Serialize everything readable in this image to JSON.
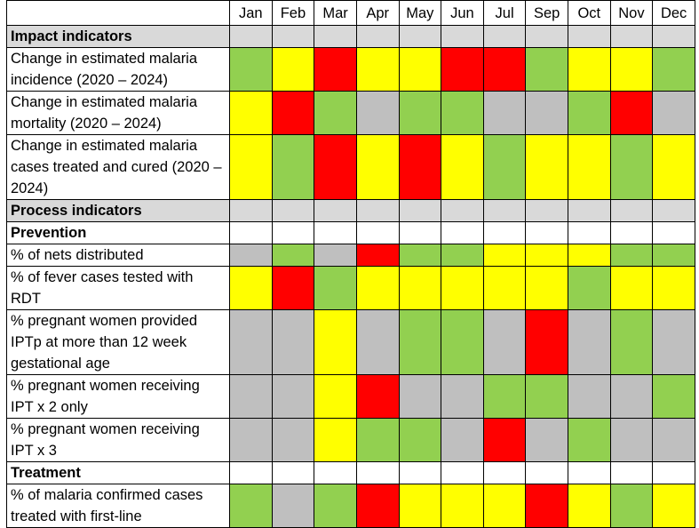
{
  "table": {
    "months": [
      "Jan",
      "Feb",
      "Mar",
      "Apr",
      "May",
      "Jun",
      "Jul",
      "Sep",
      "Oct",
      "Nov",
      "Dec"
    ],
    "rows": [
      {
        "label": "Impact indicators",
        "fill": "#d9d9d9"
      },
      {
        "label": "Change in estimated malaria incidence (2020 – 2024)",
        "cells": [
          "#92d050",
          "#ffff00",
          "#ff0000",
          "#ffff00",
          "#ffff00",
          "#ff0000",
          "#ff0000",
          "#92d050",
          "#ffff00",
          "#ffff00",
          "#92d050"
        ]
      },
      {
        "label": "Change in estimated malaria mortality (2020 – 2024)",
        "cells": [
          "#ffff00",
          "#ff0000",
          "#92d050",
          "#bfbfbf",
          "#92d050",
          "#92d050",
          "#bfbfbf",
          "#bfbfbf",
          "#92d050",
          "#ff0000",
          "#bfbfbf"
        ]
      },
      {
        "label": "Change in estimated malaria cases treated and cured (2020 – 2024)",
        "cells": [
          "#ffff00",
          "#92d050",
          "#ff0000",
          "#ffff00",
          "#ff0000",
          "#ffff00",
          "#92d050",
          "#ffff00",
          "#ffff00",
          "#92d050",
          "#ffff00"
        ]
      },
      {
        "label": "Process indicators",
        "fill": "#d9d9d9"
      },
      {
        "label": "Prevention",
        "fill": "#ffffff"
      },
      {
        "label": "% of nets distributed",
        "cells": [
          "#bfbfbf",
          "#92d050",
          "#bfbfbf",
          "#ff0000",
          "#92d050",
          "#92d050",
          "#ffff00",
          "#ffff00",
          "#ffff00",
          "#92d050",
          "#92d050"
        ]
      },
      {
        "label": "% of fever cases tested with RDT",
        "cells": [
          "#ffff00",
          "#ff0000",
          "#92d050",
          "#ffff00",
          "#ffff00",
          "#ffff00",
          "#ffff00",
          "#ffff00",
          "#92d050",
          "#ffff00",
          "#ffff00"
        ]
      },
      {
        "label": "% pregnant women provided IPTp at more than 12 week gestational age",
        "cells": [
          "#bfbfbf",
          "#bfbfbf",
          "#ffff00",
          "#bfbfbf",
          "#92d050",
          "#92d050",
          "#bfbfbf",
          "#ff0000",
          "#bfbfbf",
          "#92d050",
          "#bfbfbf"
        ]
      },
      {
        "label": "% pregnant women receiving IPT x 2 only",
        "cells": [
          "#bfbfbf",
          "#bfbfbf",
          "#ffff00",
          "#ff0000",
          "#bfbfbf",
          "#bfbfbf",
          "#92d050",
          "#92d050",
          "#bfbfbf",
          "#bfbfbf",
          "#92d050"
        ]
      },
      {
        "label": "% pregnant women receiving IPT x 3",
        "cells": [
          "#bfbfbf",
          "#bfbfbf",
          "#ffff00",
          "#92d050",
          "#92d050",
          "#bfbfbf",
          "#ff0000",
          "#bfbfbf",
          "#92d050",
          "#bfbfbf",
          "#bfbfbf"
        ]
      },
      {
        "label": "Treatment",
        "fill": "#ffffff"
      },
      {
        "label": "% of malaria confirmed cases treated with first-line",
        "cells": [
          "#92d050",
          "#bfbfbf",
          "#92d050",
          "#ff0000",
          "#ffff00",
          "#ffff00",
          "#ffff00",
          "#ff0000",
          "#ffff00",
          "#92d050",
          "#ffff00"
        ]
      }
    ]
  }
}
